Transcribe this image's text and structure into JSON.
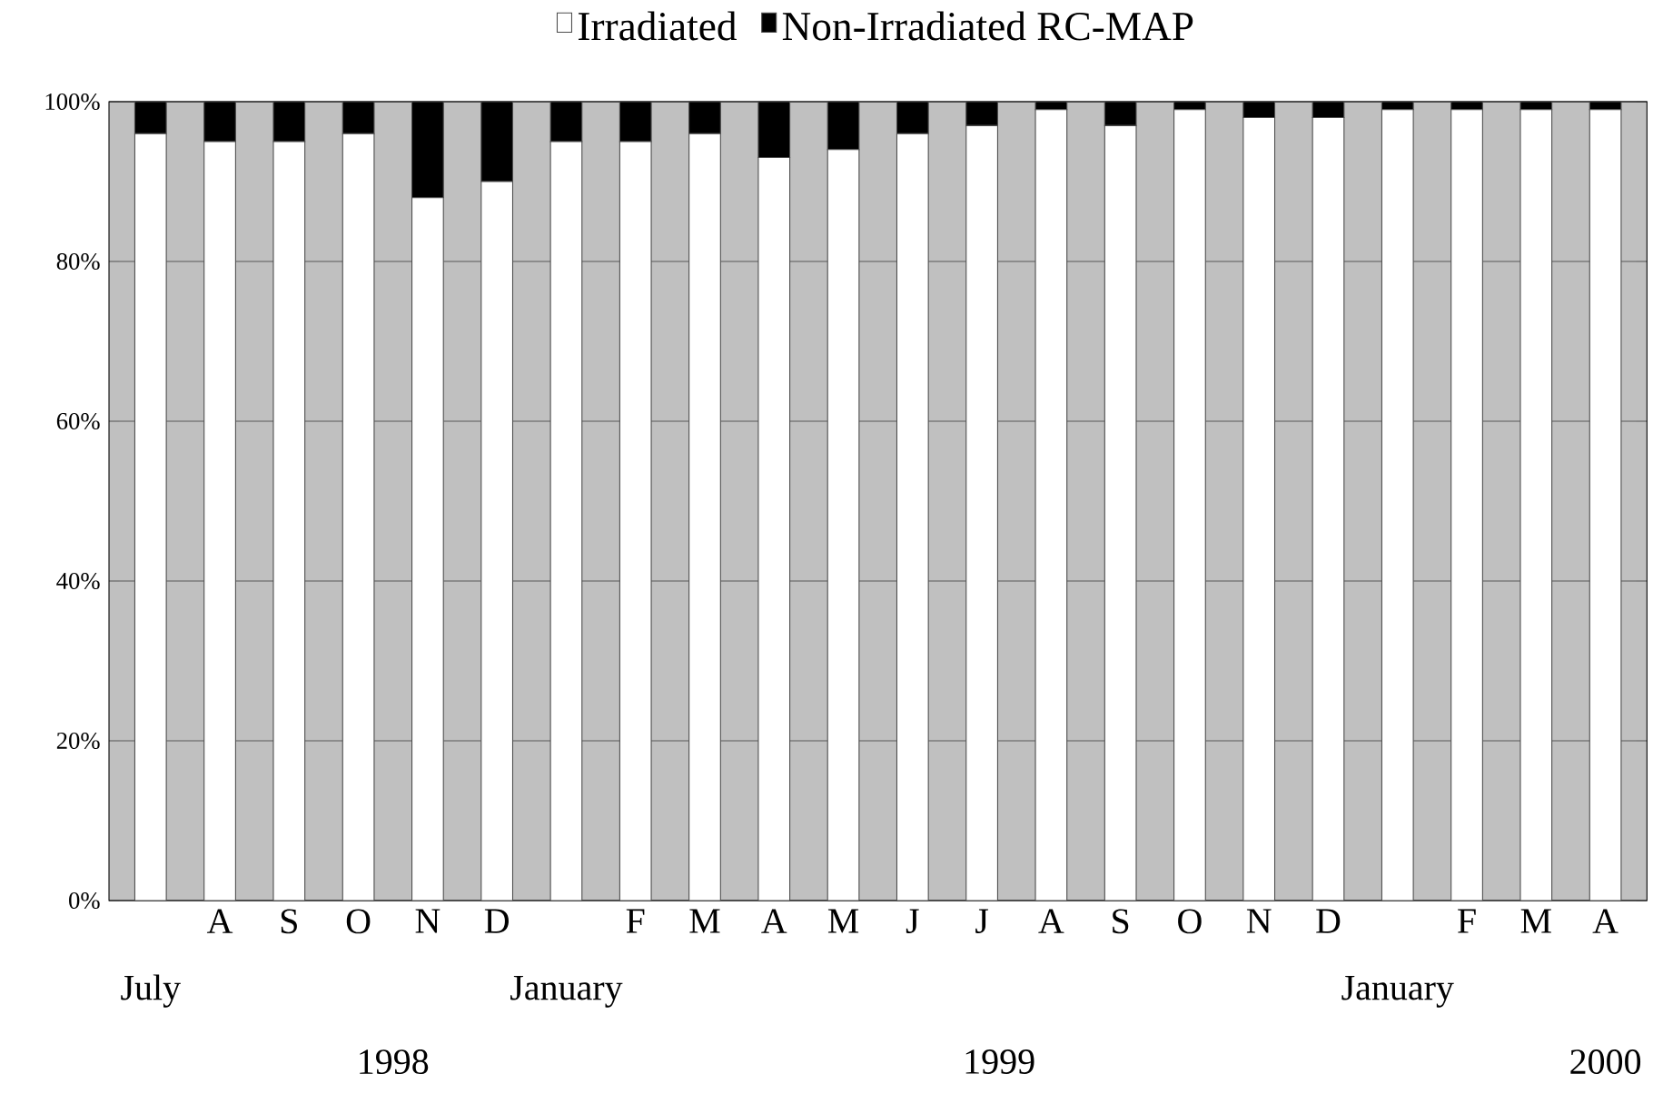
{
  "chart_data": {
    "type": "bar",
    "stacked": true,
    "categories": [
      "July",
      "A",
      "S",
      "O",
      "N",
      "D",
      "January",
      "F",
      "M",
      "A",
      "M",
      "J",
      "J",
      "A",
      "S",
      "O",
      "N",
      "D",
      "January",
      "F",
      "M",
      "A"
    ],
    "series": [
      {
        "name": "Irradiated",
        "color": "#ffffff",
        "values": [
          96,
          95,
          95,
          96,
          88,
          90,
          95,
          95,
          96,
          93,
          94,
          96,
          97,
          99,
          97,
          99,
          98,
          98,
          99,
          99,
          99,
          99
        ]
      },
      {
        "name": "Non-Irradiated RC-MAP",
        "color": "#000000",
        "values": [
          4,
          5,
          5,
          4,
          12,
          10,
          5,
          5,
          4,
          7,
          6,
          4,
          3,
          1,
          3,
          1,
          2,
          2,
          1,
          1,
          1,
          1
        ]
      }
    ],
    "ylim": [
      0,
      100
    ],
    "yticks": [
      {
        "value": 0,
        "label": "0%"
      },
      {
        "value": 20,
        "label": "20%"
      },
      {
        "value": 40,
        "label": "40%"
      },
      {
        "value": 60,
        "label": "60%"
      },
      {
        "value": 80,
        "label": "80%"
      },
      {
        "value": 100,
        "label": "100%"
      }
    ],
    "grid": "y",
    "legend": "top",
    "annotations": [
      "1998",
      "1999",
      "2000"
    ]
  }
}
